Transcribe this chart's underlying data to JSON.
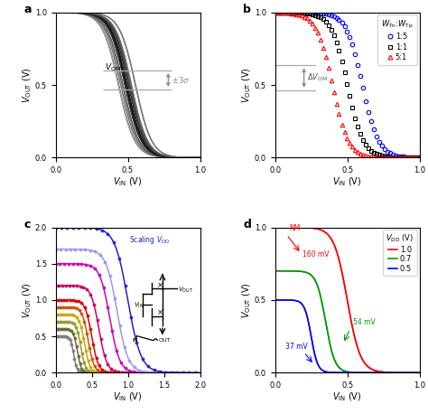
{
  "panel_a": {
    "n_curves": 30,
    "vdd": 1.0,
    "vth_mean": 0.5,
    "vth_std": 0.035,
    "steepness": 18.0,
    "xlabel": "$V_{\\mathrm{IN}}$ (V)",
    "ylabel": "$V_{\\mathrm{OUT}}$ (V)",
    "label": "a",
    "vom_label": "$V_{\\mathrm{OM}}$",
    "sigma_label": "$\\pm3\\sigma$",
    "xlim": [
      0.0,
      1.0
    ],
    "ylim": [
      0.0,
      1.0
    ],
    "xticks": [
      0.0,
      0.5,
      1.0
    ],
    "yticks": [
      0.0,
      0.5,
      1.0
    ]
  },
  "panel_b": {
    "n_markers": 55,
    "xlabel": "$V_{\\mathrm{IN}}$ (V)",
    "ylabel": "$V_{\\mathrm{OUT}}$ (V)",
    "label": "b",
    "legend_title": "$W_{\\mathrm{Tn}}$:$W_{\\mathrm{Tp}}$",
    "ratios": [
      "1:5",
      "1:1",
      "5:1"
    ],
    "ratio_values": [
      0.2,
      1.0,
      5.0
    ],
    "colors": [
      "blue",
      "black",
      "red"
    ],
    "markers": [
      "o",
      "s",
      "^"
    ],
    "vom_upper": 0.635,
    "vom_lower": 0.465,
    "vom_label": "$\\Delta V_{\\mathrm{OM}}$",
    "xlim": [
      0.0,
      1.0
    ],
    "ylim": [
      0.0,
      1.0
    ],
    "xticks": [
      0.0,
      0.5,
      1.0
    ],
    "yticks": [
      0.0,
      0.5,
      1.0
    ]
  },
  "panel_c": {
    "xlabel": "$V_{\\mathrm{IN}}$ (V)",
    "ylabel": "$V_{\\mathrm{OUT}}$ (V)",
    "label": "c",
    "scaling_label": "Scaling $V_{\\mathrm{DD}}$",
    "vdd_values": [
      0.5,
      0.6,
      0.7,
      0.8,
      0.9,
      1.0,
      1.2,
      1.5,
      1.7,
      2.0
    ],
    "vdd_colors": [
      "#808080",
      "#6b6b3a",
      "#999933",
      "#ccaa00",
      "#cc5500",
      "#dd0000",
      "#cc0066",
      "#cc00bb",
      "#9999ee",
      "#2222cc"
    ],
    "xlim": [
      0.0,
      2.0
    ],
    "ylim": [
      0.0,
      2.0
    ],
    "xticks": [
      0.0,
      0.5,
      1.0,
      1.5,
      2.0
    ],
    "yticks": [
      0.0,
      0.5,
      1.0,
      1.5,
      2.0
    ]
  },
  "panel_d": {
    "xlabel": "$V_{\\mathrm{IN}}$ (V)",
    "ylabel": "$V_{\\mathrm{OUT}}$ (V)",
    "label": "d",
    "vdd_label": "$V_{\\mathrm{DD}}$ (V)",
    "vdd_values": [
      1.0,
      0.7,
      0.5
    ],
    "colors": [
      "red",
      "#009900",
      "blue"
    ],
    "legend_labels": [
      "1.0",
      "0.7",
      "0.5"
    ],
    "xlim": [
      0.0,
      1.0
    ],
    "ylim": [
      0.0,
      1.0
    ],
    "xticks": [
      0.0,
      0.5,
      1.0
    ],
    "yticks": [
      0.0,
      0.5,
      1.0
    ]
  }
}
